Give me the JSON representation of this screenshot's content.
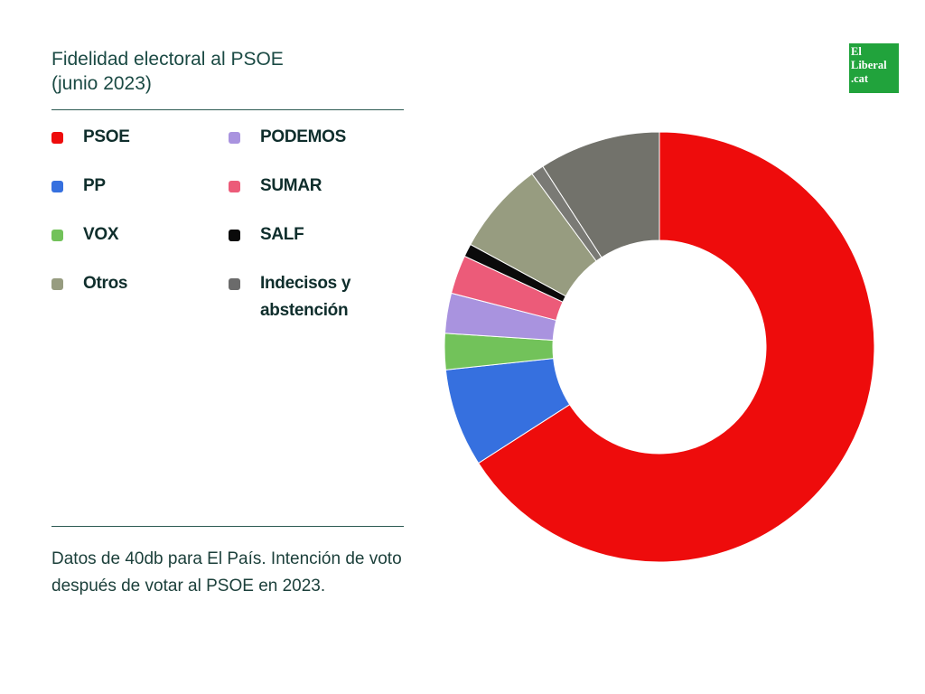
{
  "header": {
    "title_line1": "Fidelidad electoral al PSOE",
    "title_line2": "(junio 2023)"
  },
  "logo": {
    "line1": "El",
    "line2": "Liberal",
    "line3": ".cat",
    "color": "#21a33c"
  },
  "footer": {
    "note": "Datos de 40db para El País. Intención de voto después de votar al PSOE en 2023."
  },
  "chart_data": {
    "type": "pie",
    "donut": true,
    "legend_position": "left",
    "series": [
      {
        "name": "PSOE",
        "value": 67.9,
        "color": "#ee0c0c"
      },
      {
        "name": "PP",
        "value": 7.6,
        "color": "#3670df"
      },
      {
        "name": "VOX",
        "value": 2.8,
        "color": "#72c25a"
      },
      {
        "name": "PODEMOS",
        "value": 3.1,
        "color": "#a993df"
      },
      {
        "name": "SUMAR",
        "value": 3.0,
        "color": "#ec5b79"
      },
      {
        "name": "SALF",
        "value": 1.0,
        "color": "#0a0a0a"
      },
      {
        "name": "Otros",
        "value": 7.2,
        "color": "#979c80"
      },
      {
        "name": "Indecisos y abstención",
        "value": 1.0,
        "color": "#7a7a75"
      },
      {
        "name": "",
        "value": 9.4,
        "color": "#72726b"
      }
    ],
    "legend": [
      {
        "label": "PSOE",
        "color": "#ee0c0c"
      },
      {
        "label": "PODEMOS",
        "color": "#a993df"
      },
      {
        "label": "PP",
        "color": "#3670df"
      },
      {
        "label": "SUMAR",
        "color": "#ec5b79"
      },
      {
        "label": "VOX",
        "color": "#72c25a"
      },
      {
        "label": "SALF",
        "color": "#0a0a0a"
      },
      {
        "label": "Otros",
        "color": "#979c80"
      },
      {
        "label": "Indecisos y abstención",
        "color": "#6b6b6b"
      }
    ]
  }
}
